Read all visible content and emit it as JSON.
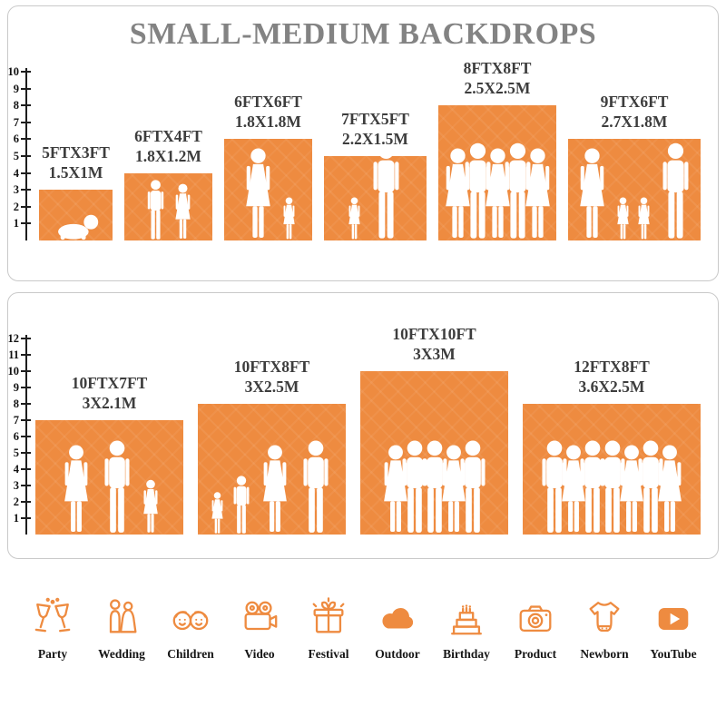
{
  "title": "SMALL-MEDIUM BACKDROPS",
  "colors": {
    "accent": "#EE8B40",
    "title_gray": "#838383",
    "label_dark": "#3D3D3D",
    "axis_black": "#1D1D1D",
    "border_gray": "#C9C9C9",
    "silhouette_white": "#FFFFFF"
  },
  "chart_data": [
    {
      "type": "bar",
      "name": "small-medium-backdrops-panel",
      "title": "SMALL-MEDIUM BACKDROPS",
      "axis_unit": "FT",
      "yticks": [
        1,
        2,
        3,
        4,
        5,
        6,
        7,
        8,
        9,
        10
      ],
      "ylim": [
        0,
        10
      ],
      "grid": false,
      "bars": [
        {
          "size_ft": "5FTX3FT",
          "size_m": "1.5X1M",
          "width_ft": 5,
          "height_ft": 3,
          "people": [
            "baby"
          ]
        },
        {
          "size_ft": "6FTX4FT",
          "size_m": "1.8X1.2M",
          "width_ft": 6,
          "height_ft": 4,
          "people": [
            "boy",
            "girl"
          ]
        },
        {
          "size_ft": "6FTX6FT",
          "size_m": "1.8X1.8M",
          "width_ft": 6,
          "height_ft": 6,
          "people": [
            "woman",
            "toddler"
          ]
        },
        {
          "size_ft": "7FTX5FT",
          "size_m": "2.2X1.5M",
          "width_ft": 7,
          "height_ft": 5,
          "people": [
            "toddler",
            "man"
          ]
        },
        {
          "size_ft": "8FTX8FT",
          "size_m": "2.5X2.5M",
          "width_ft": 8,
          "height_ft": 8,
          "people": [
            "woman",
            "man",
            "woman",
            "man",
            "woman"
          ]
        },
        {
          "size_ft": "9FTX6FT",
          "size_m": "2.7X1.8M",
          "width_ft": 9,
          "height_ft": 6,
          "people": [
            "woman",
            "toddler",
            "toddler",
            "man"
          ]
        }
      ]
    },
    {
      "type": "bar",
      "name": "large-backdrops-panel",
      "axis_unit": "FT",
      "yticks": [
        1,
        2,
        3,
        4,
        5,
        6,
        7,
        8,
        9,
        10,
        11,
        12
      ],
      "ylim": [
        0,
        12
      ],
      "grid": false,
      "bars": [
        {
          "size_ft": "10FTX7FT",
          "size_m": "3X2.1M",
          "width_ft": 10,
          "height_ft": 7,
          "people": [
            "woman",
            "man",
            "girl"
          ]
        },
        {
          "size_ft": "10FTX8FT",
          "size_m": "3X2.5M",
          "width_ft": 10,
          "height_ft": 8,
          "people": [
            "toddler",
            "boy",
            "woman",
            "man"
          ]
        },
        {
          "size_ft": "10FTX10FT",
          "size_m": "3X3M",
          "width_ft": 10,
          "height_ft": 10,
          "people": [
            "woman",
            "man",
            "man",
            "woman",
            "man"
          ]
        },
        {
          "size_ft": "12FTX8FT",
          "size_m": "3.6X2.5M",
          "width_ft": 12,
          "height_ft": 8,
          "people": [
            "man",
            "woman",
            "man",
            "man",
            "woman",
            "man",
            "woman"
          ]
        }
      ]
    }
  ],
  "categories": [
    {
      "label": "Party",
      "icon": "party-icon"
    },
    {
      "label": "Wedding",
      "icon": "wedding-icon"
    },
    {
      "label": "Children",
      "icon": "children-icon"
    },
    {
      "label": "Video",
      "icon": "video-icon"
    },
    {
      "label": "Festival",
      "icon": "festival-icon"
    },
    {
      "label": "Outdoor",
      "icon": "outdoor-icon"
    },
    {
      "label": "Birthday",
      "icon": "birthday-icon"
    },
    {
      "label": "Product",
      "icon": "product-icon"
    },
    {
      "label": "Newborn",
      "icon": "newborn-icon"
    },
    {
      "label": "YouTube",
      "icon": "youtube-icon"
    }
  ]
}
